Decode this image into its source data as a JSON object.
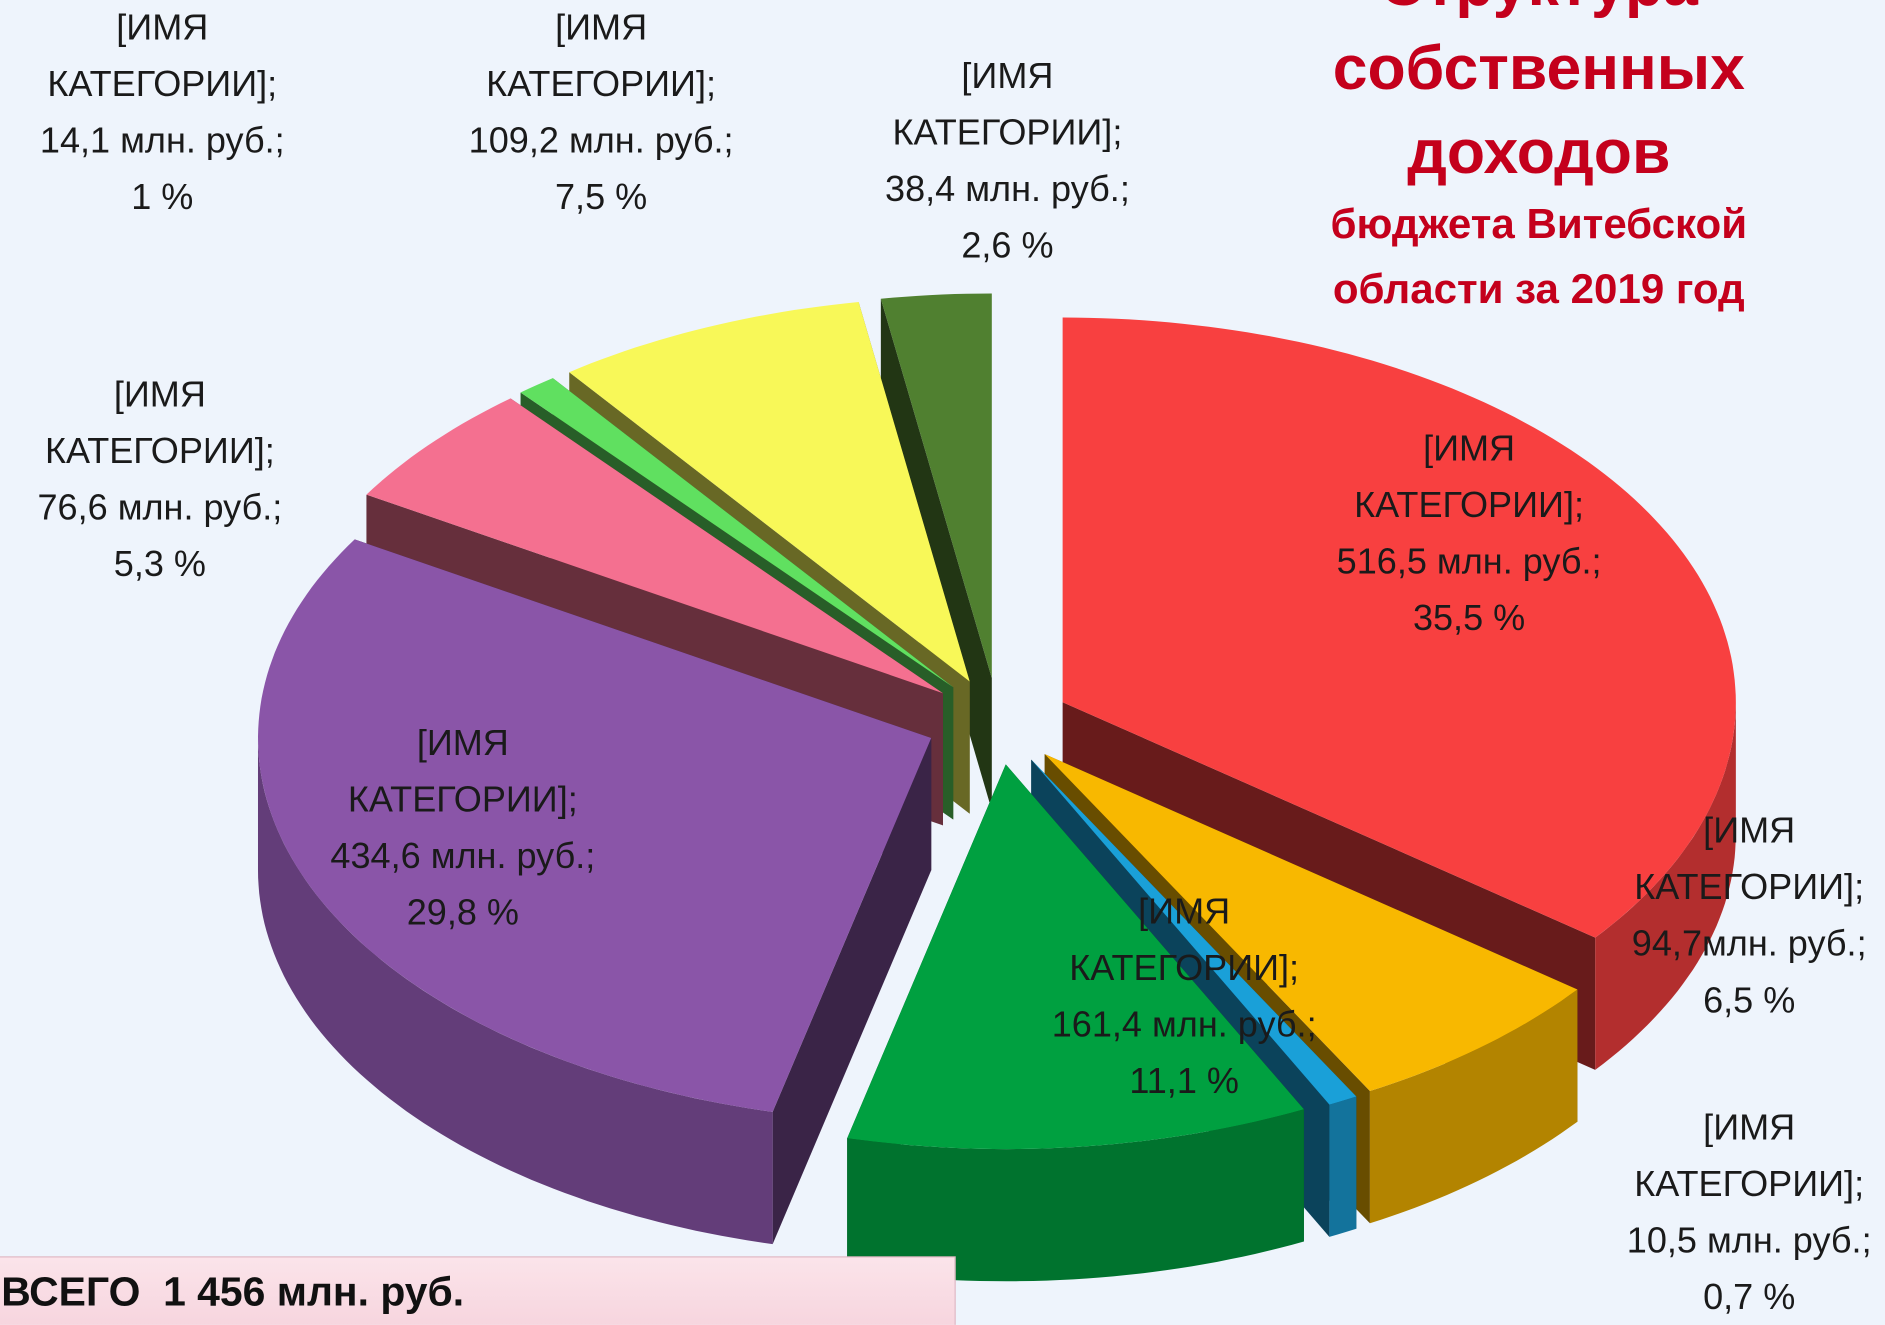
{
  "chart_data": {
    "type": "pie3d",
    "title": "Структура собственных доходов",
    "subtitle": "бюджета Витебской области за 2019 год",
    "total": "ВСЕГО  1 456 млн. руб.",
    "categories": [
      "[ИМЯ КАТЕГОРИИ];",
      "[ИМЯ КАТЕГОРИИ];",
      "[ИМЯ КАТЕГОРИИ];",
      "[ИМЯ КАТЕГОРИИ];",
      "[ИМЯ КАТЕГОРИИ];",
      "[ИМЯ КАТЕГОРИИ];",
      "[ИМЯ КАТЕГОРИИ];",
      "[ИМЯ КАТЕГОРИИ];",
      "[ИМЯ КАТЕГОРИИ];"
    ],
    "values": [
      516.5,
      94.7,
      10.5,
      161.4,
      434.6,
      76.6,
      14.1,
      109.2,
      38.4
    ],
    "value_labels": [
      "516,5 млн. руб.;",
      "94,7млн. руб.;",
      "10,5 млн. руб.;",
      "161,4 млн. руб.;",
      "434,6 млн. руб.;",
      "76,6 млн. руб.;",
      "14,1 млн. руб.;",
      "109,2 млн. руб.;",
      "38,4 млн. руб.;"
    ],
    "percents": [
      35.5,
      6.5,
      0.7,
      11.1,
      29.8,
      5.3,
      1,
      7.5,
      2.6
    ],
    "percent_labels": [
      "35,5 %",
      "6,5 %",
      "0,7 %",
      "11,1 %",
      "29,8 %",
      "5,3 %",
      "1 %",
      "7,5 %",
      "2,6 %"
    ],
    "colors": [
      "#f84040",
      "#f8b800",
      "#1aa0d8",
      "#00a040",
      "#8a55a8",
      "#f47090",
      "#60e060",
      "#f8f858",
      "#508030"
    ]
  }
}
